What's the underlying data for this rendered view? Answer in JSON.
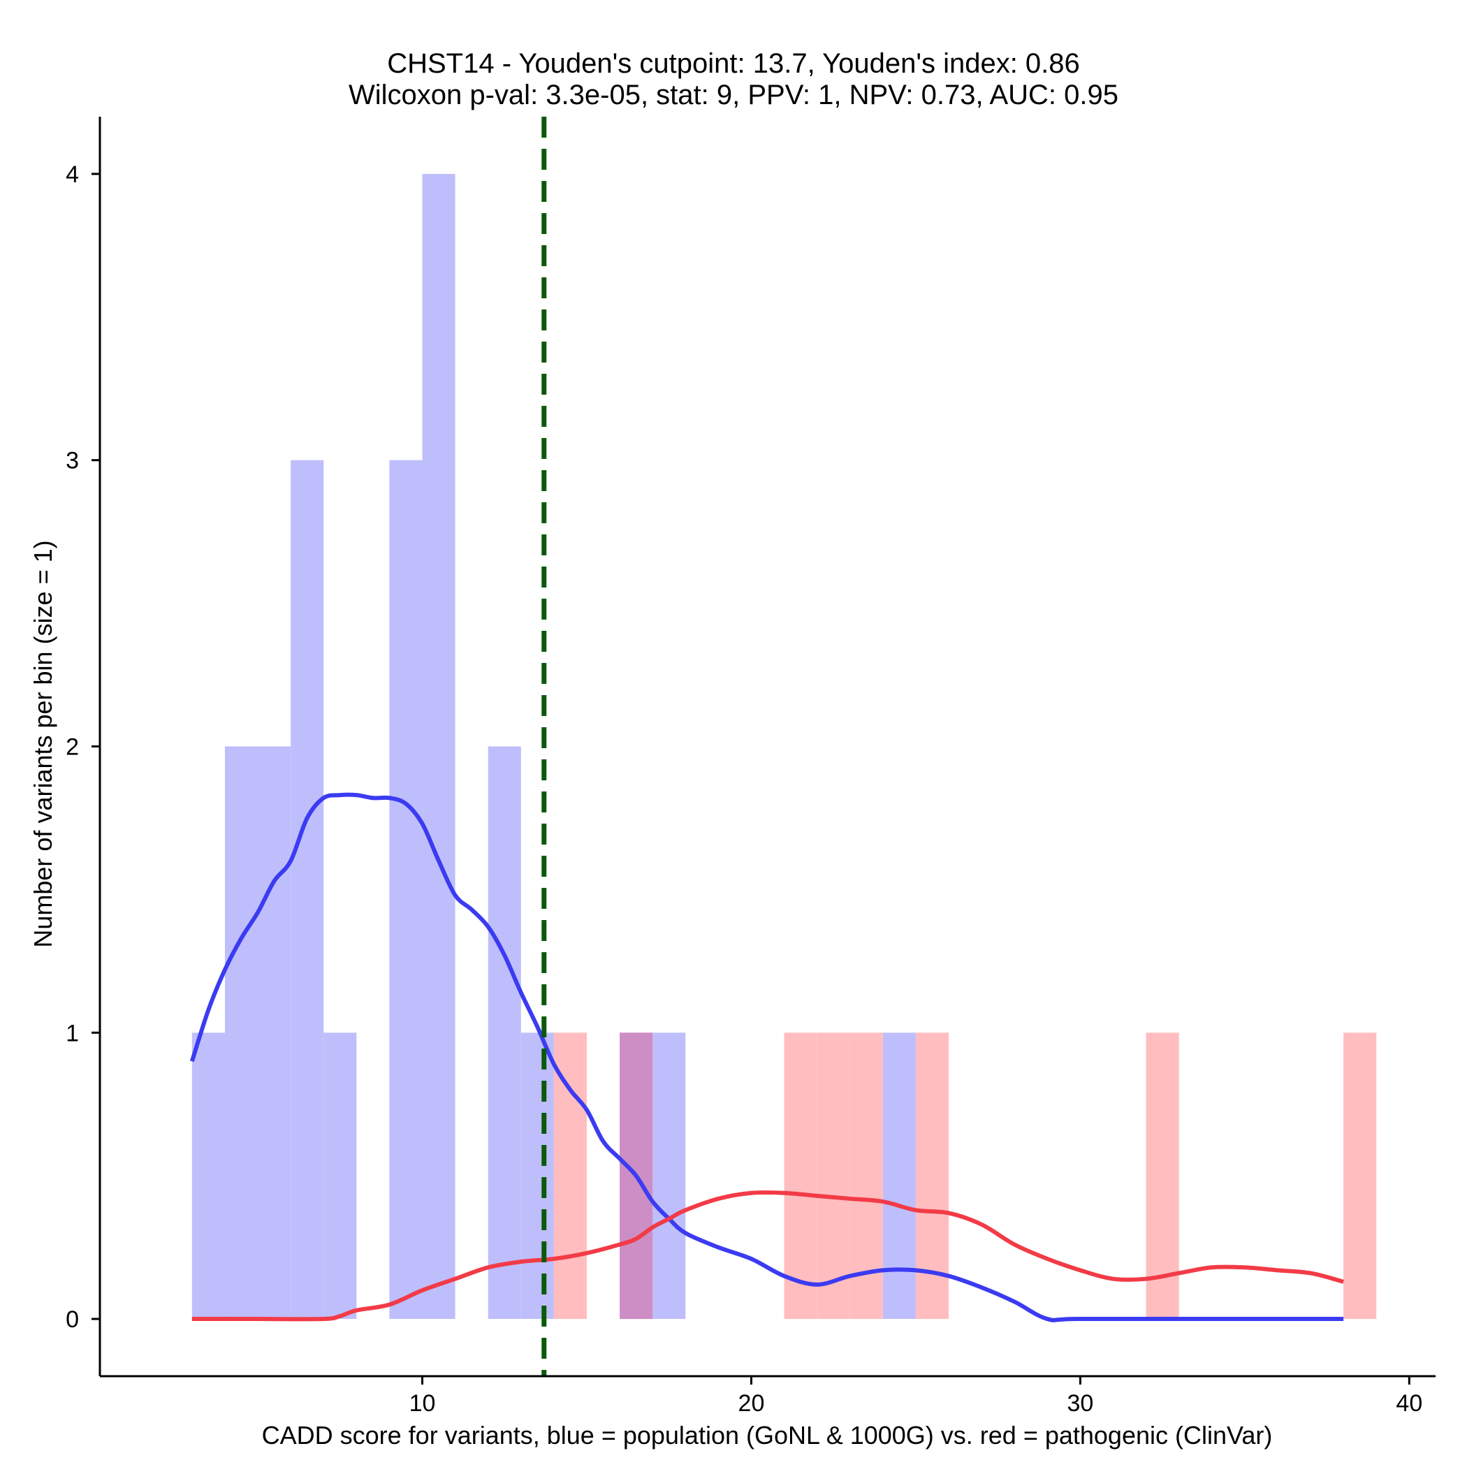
{
  "chart_data": {
    "type": "histogram",
    "title_line1": "CHST14 - Youden's cutpoint: 13.7, Youden's index: 0.86",
    "title_line2": "Wilcoxon p-val: 3.3e-05, stat: 9, PPV: 1, NPV: 0.73, AUC: 0.95",
    "xlabel": "CADD score for variants, blue = population (GoNL & 1000G) vs. red = pathogenic (ClinVar)",
    "ylabel": "Number of variants per bin (size = 1)",
    "xlim": [
      0.2,
      40.8
    ],
    "ylim": [
      -0.2,
      4.2
    ],
    "xticks": [
      10,
      20,
      30,
      40
    ],
    "yticks": [
      0,
      1,
      2,
      3,
      4
    ],
    "cutpoint": 13.7,
    "colors": {
      "population_bar": "#bebefc",
      "pathogenic_bar": "#ffbdbf",
      "overlap_bar": "#cc8ec4",
      "population_line": "#3b3bf2",
      "pathogenic_line": "#f23b47",
      "cutpoint_line": "#0b5a0b"
    },
    "series": [
      {
        "name": "population (GoNL & 1000G)",
        "bins": [
          {
            "x": 3,
            "count": 1
          },
          {
            "x": 4,
            "count": 2
          },
          {
            "x": 5,
            "count": 2
          },
          {
            "x": 6,
            "count": 3
          },
          {
            "x": 7,
            "count": 1
          },
          {
            "x": 9,
            "count": 3
          },
          {
            "x": 10,
            "count": 4
          },
          {
            "x": 12,
            "count": 2
          },
          {
            "x": 13,
            "count": 1
          },
          {
            "x": 16,
            "count": 1
          },
          {
            "x": 17,
            "count": 1
          },
          {
            "x": 24,
            "count": 1
          }
        ],
        "density": [
          [
            3.0,
            0.9
          ],
          [
            3.5,
            1.08
          ],
          [
            4.0,
            1.22
          ],
          [
            4.5,
            1.33
          ],
          [
            5.0,
            1.42
          ],
          [
            5.5,
            1.53
          ],
          [
            6.0,
            1.6
          ],
          [
            6.5,
            1.75
          ],
          [
            7.0,
            1.82
          ],
          [
            7.5,
            1.83
          ],
          [
            8.0,
            1.83
          ],
          [
            8.5,
            1.82
          ],
          [
            9.0,
            1.82
          ],
          [
            9.5,
            1.8
          ],
          [
            10.0,
            1.73
          ],
          [
            10.5,
            1.6
          ],
          [
            11.0,
            1.48
          ],
          [
            11.5,
            1.43
          ],
          [
            12.0,
            1.37
          ],
          [
            12.5,
            1.27
          ],
          [
            13.0,
            1.14
          ],
          [
            13.5,
            1.02
          ],
          [
            14.0,
            0.89
          ],
          [
            14.5,
            0.8
          ],
          [
            15.0,
            0.73
          ],
          [
            15.5,
            0.62
          ],
          [
            16.0,
            0.56
          ],
          [
            16.5,
            0.5
          ],
          [
            17.0,
            0.41
          ],
          [
            17.5,
            0.35
          ],
          [
            18.0,
            0.3
          ],
          [
            19.0,
            0.25
          ],
          [
            20.0,
            0.21
          ],
          [
            21.0,
            0.15
          ],
          [
            22.0,
            0.12
          ],
          [
            23.0,
            0.15
          ],
          [
            24.0,
            0.17
          ],
          [
            25.0,
            0.17
          ],
          [
            26.0,
            0.15
          ],
          [
            27.0,
            0.11
          ],
          [
            28.0,
            0.06
          ],
          [
            29.0,
            0.0
          ],
          [
            30.0,
            0.0
          ],
          [
            35.0,
            0.0
          ],
          [
            38.0,
            0.0
          ]
        ]
      },
      {
        "name": "pathogenic (ClinVar)",
        "bins": [
          {
            "x": 14,
            "count": 1
          },
          {
            "x": 16,
            "count": 1
          },
          {
            "x": 21,
            "count": 1
          },
          {
            "x": 22,
            "count": 1
          },
          {
            "x": 23,
            "count": 1
          },
          {
            "x": 25,
            "count": 1
          },
          {
            "x": 32,
            "count": 1
          },
          {
            "x": 38,
            "count": 1
          }
        ],
        "density": [
          [
            3.0,
            0.0
          ],
          [
            5.0,
            0.0
          ],
          [
            7.0,
            0.0
          ],
          [
            7.5,
            0.01
          ],
          [
            8.0,
            0.03
          ],
          [
            9.0,
            0.05
          ],
          [
            10.0,
            0.1
          ],
          [
            11.0,
            0.14
          ],
          [
            12.0,
            0.18
          ],
          [
            13.0,
            0.2
          ],
          [
            14.0,
            0.21
          ],
          [
            15.0,
            0.23
          ],
          [
            16.0,
            0.26
          ],
          [
            16.5,
            0.28
          ],
          [
            17.0,
            0.32
          ],
          [
            17.5,
            0.35
          ],
          [
            18.0,
            0.38
          ],
          [
            19.0,
            0.42
          ],
          [
            20.0,
            0.44
          ],
          [
            21.0,
            0.44
          ],
          [
            22.0,
            0.43
          ],
          [
            23.0,
            0.42
          ],
          [
            24.0,
            0.41
          ],
          [
            25.0,
            0.38
          ],
          [
            26.0,
            0.37
          ],
          [
            27.0,
            0.33
          ],
          [
            28.0,
            0.26
          ],
          [
            29.0,
            0.21
          ],
          [
            30.0,
            0.17
          ],
          [
            31.0,
            0.14
          ],
          [
            32.0,
            0.14
          ],
          [
            33.0,
            0.16
          ],
          [
            34.0,
            0.18
          ],
          [
            35.0,
            0.18
          ],
          [
            36.0,
            0.17
          ],
          [
            37.0,
            0.16
          ],
          [
            38.0,
            0.13
          ]
        ]
      }
    ]
  }
}
